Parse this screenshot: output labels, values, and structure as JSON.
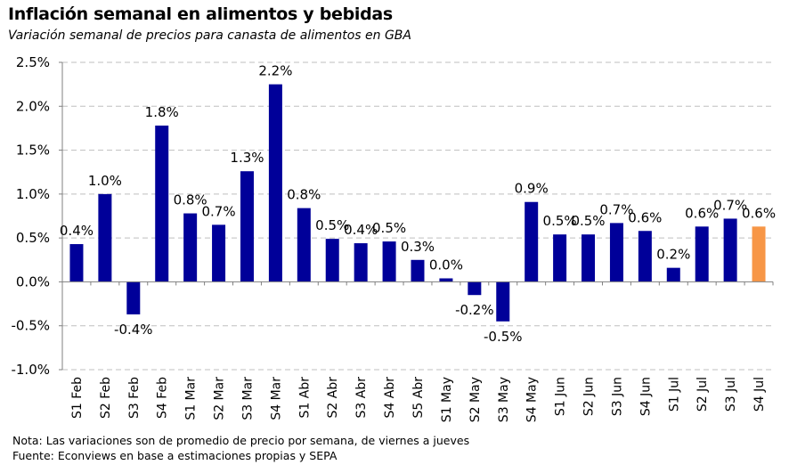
{
  "title": "Inflación semanal en alimentos y bebidas",
  "subtitle": "Variación semanal de precios para canasta de alimentos en GBA",
  "notes": {
    "nota": "Nota: Las variaciones son de promedio de precio por semana, de viernes a jueves",
    "fuente": "Fuente: Econviews en base a estimaciones propias  y SEPA"
  },
  "colors": {
    "bar": "#000099",
    "highlight": "#F79646",
    "grid": "#BFBFBF",
    "axis": "#808080"
  },
  "chart_data": {
    "type": "bar",
    "title": "Inflación semanal en alimentos y bebidas",
    "xlabel": "",
    "ylabel": "",
    "ylim": [
      -1.0,
      2.5
    ],
    "yticks": [
      2.5,
      2.0,
      1.5,
      1.0,
      0.5,
      0.0,
      -0.5,
      -1.0
    ],
    "ytick_labels": [
      "2.5%",
      "2.0%",
      "1.5%",
      "1.0%",
      "0.5%",
      "0.0%",
      "-0.5%",
      "-1.0%"
    ],
    "grid": true,
    "categories": [
      "S1 Feb",
      "S2 Feb",
      "S3 Feb",
      "S4 Feb",
      "S1 Mar",
      "S2 Mar",
      "S3 Mar",
      "S4 Mar",
      "S1 Abr",
      "S2 Abr",
      "S3 Abr",
      "S4 Abr",
      "S5 Abr",
      "S1 May",
      "S2 May",
      "S3 May",
      "S4 May",
      "S1 Jun",
      "S2 Jun",
      "S3 Jun",
      "S4 Jun",
      "S1 Jul",
      "S2 Jul",
      "S3 Jul",
      "S4 Jul"
    ],
    "values": [
      0.43,
      1.0,
      -0.37,
      1.78,
      0.78,
      0.65,
      1.26,
      2.25,
      0.84,
      0.49,
      0.44,
      0.46,
      0.25,
      0.04,
      -0.15,
      -0.45,
      0.91,
      0.54,
      0.54,
      0.67,
      0.58,
      0.16,
      0.63,
      0.72,
      0.63
    ],
    "data_labels": [
      "0.4%",
      "1.0%",
      "-0.4%",
      "1.8%",
      "0.8%",
      "0.7%",
      "1.3%",
      "2.2%",
      "0.8%",
      "0.5%",
      "0.4%",
      "0.5%",
      "0.3%",
      "0.0%",
      "-0.2%",
      "-0.5%",
      "0.9%",
      "0.5%",
      "0.5%",
      "0.7%",
      "0.6%",
      "0.2%",
      "0.6%",
      "0.7%",
      "0.6%"
    ],
    "highlight_index": 24
  }
}
